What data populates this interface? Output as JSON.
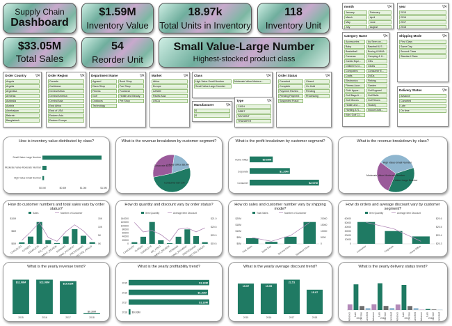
{
  "header": {
    "line1": "Supply Chain",
    "line2": "Dashboard"
  },
  "kpis": [
    {
      "id": "inv-value",
      "value": "$1.59M",
      "label": "Inventory Value"
    },
    {
      "id": "units",
      "value": "18.97k",
      "label": "Total Units in Inventory"
    },
    {
      "id": "inv-unit",
      "value": "118",
      "label": "Inventory Unit"
    },
    {
      "id": "sales",
      "value": "$33.05M",
      "label": "Total Sales"
    },
    {
      "id": "reorder",
      "value": "54",
      "label": "Reorder Unit"
    },
    {
      "id": "class",
      "value": "Small Value-Large Number",
      "label": "Highest-stocked product class"
    }
  ],
  "slicers": {
    "order_country": {
      "title": "Order Country",
      "items": [
        "Angola",
        "Argelia",
        "Argentina",
        "Armenia",
        "Australia",
        "Austria",
        "Azerbaiyan",
        "Bahrein",
        "Bangladesh"
      ]
    },
    "order_region": {
      "title": "Order Region",
      "items": [
        "Canada",
        "Caribbean",
        "Central Africa",
        "Central America",
        "Central Asia",
        "East Africa",
        "East of USA",
        "Eastern Asia",
        "Eastern Europe"
      ]
    },
    "department": {
      "title": "Department Name",
      "items": [
        "Apparel",
        "Book Shop",
        "Discs Shop",
        "Fan Shop",
        "Fitness",
        "Footwear",
        "Golf",
        "Health and Beauty",
        "Outdoors",
        "Pet Shop",
        "Technology"
      ]
    },
    "market": {
      "title": "Market",
      "items": [
        "Africa",
        "Europe",
        "LATAM",
        "Pacific Asia",
        "USCA"
      ]
    },
    "class": {
      "title": "Class",
      "items": [
        "High Value-Small Number",
        "Moderate Value-Modera...",
        "Small Value-Large Number"
      ]
    },
    "manufacturer": {
      "title": "Manufacturer",
      "items": [
        "$",
        "$"
      ]
    },
    "type": {
      "title": "Type",
      "items": [
        "CASH",
        "DEBIT",
        "PAYMENT",
        "TRANSFER"
      ]
    },
    "order_status": {
      "title": "Order Status",
      "items": [
        "Canceled",
        "Closed",
        "Complete",
        "On Hold",
        "Payment Review",
        "Pending",
        "Pending Payment",
        "Processing",
        "Suspected Fraud"
      ]
    },
    "category": {
      "title": "Category Name",
      "items": [
        "Accessories",
        "As Seen on...",
        "Baby",
        "Baseball & S...",
        "Basketball",
        "Boxing & MMA",
        "Cameras",
        "Camping & H...",
        "Cardio Equi...",
        "CDs",
        "Children's Cl...",
        "Cleats",
        "Computers",
        "Consumer E...",
        "Crafts",
        "DVDs",
        "Electronics",
        "Fishing",
        "Fitness Acce...",
        "Garden",
        "Girls' Appar...",
        "Golf Apparel",
        "Golf Bags & ...",
        "Golf Balls",
        "Golf Gloves",
        "Golf Shoes",
        "Health and ...",
        "Hockey",
        "Hunting & S...",
        "Indoor/Outd...",
        "Kids' Golf Cl..."
      ]
    },
    "month": {
      "title": "month",
      "items": [
        "January",
        "February",
        "March",
        "April",
        "May",
        "June",
        "July",
        "August"
      ]
    },
    "year": {
      "title": "year",
      "items": [
        "2015",
        "2016",
        "2017",
        "2018"
      ]
    },
    "shipping": {
      "title": "Shipping Mode",
      "items": [
        "First Class",
        "Same Day",
        "Second Class",
        "Standard Class"
      ]
    },
    "delivery": {
      "title": "Delivery Status",
      "items": [
        "Advance",
        "Canceled",
        "Late",
        "On time"
      ]
    }
  },
  "chart_data": [
    {
      "id": "c1",
      "type": "bar",
      "title": "How is inventory value distributed by class?",
      "categories": [
        "Small Value-Large Number",
        "Moderate Value-Moderate Number",
        "High Value-Small Number"
      ],
      "values": [
        1.45,
        0.1,
        0.04
      ],
      "xticks": [
        "$0.0M",
        "$0.5M",
        "$1.0M",
        "$1.5M"
      ],
      "xlim": [
        0,
        1.5
      ]
    },
    {
      "id": "c2",
      "type": "pie",
      "title": "What is the revenue breakdown by customer segment?",
      "labels": [
        "Consumer",
        "Corporate",
        "Home Office"
      ],
      "values": [
        17.1,
        10.0,
        5.9
      ],
      "slice_labels": [
        "Consumer $17.1M",
        "Corporate $10.0M",
        "Home Office $5.9M"
      ],
      "colors": [
        "#1f7a63",
        "#9a5a9a",
        "#8fb6cf"
      ]
    },
    {
      "id": "c3",
      "type": "bar",
      "title": "What is the profit breakdown by customer segment?",
      "categories": [
        "Home Office",
        "Corporate",
        "Consumer"
      ],
      "values": [
        0.69,
        1.2,
        2.07
      ],
      "data_labels": [
        "$0.69M",
        "$1.20M",
        "$2.07M"
      ]
    },
    {
      "id": "c4",
      "type": "pie",
      "title": "What is the revenue breakdown by class?",
      "labels": [
        "Small Value-Large Number",
        "Moderate Value-Moderate Number",
        "High Value-Small Number"
      ],
      "values": [
        12.0,
        9.5,
        11.5
      ],
      "slice_labels": [
        "Small Value-Large Number",
        "Moderate Value-Moderate Number",
        "High Value-Small Number"
      ],
      "colors": [
        "#1f7a63",
        "#9a5a9a",
        "#8fb6cf"
      ]
    },
    {
      "id": "c5",
      "type": "bar-line",
      "title": "How do customer numbers and total sales vary by order status?",
      "legend": [
        "Sales",
        "Number of Customer"
      ],
      "categories": [
        "CANCELED",
        "CLOSED",
        "COMPLETE",
        "ON_HOLD",
        "PAYMENT_REVIEW",
        "PENDING",
        "PENDING_PAYMENT",
        "PROCESSING",
        "SUSPECTED_FRAUD"
      ],
      "bars": [
        0.7,
        3.6,
        10.9,
        1.8,
        0.4,
        3.7,
        7.3,
        4.0,
        0.8
      ],
      "line": [
        1300,
        6800,
        13000,
        3200,
        700,
        7000,
        11500,
        7500,
        1600
      ],
      "yticks_left": [
        "$0M",
        "$5M",
        "$10M"
      ],
      "yticks_right": [
        "0K",
        "5K",
        "10K",
        "15K"
      ]
    },
    {
      "id": "c6",
      "type": "bar-line",
      "title": "How do quantity and discount vary by order status?",
      "legend": [
        "Item Quantity",
        "Average Item Discount"
      ],
      "categories": [
        "CANCELED",
        "CLOSED",
        "COMPLETE",
        "ON_HOLD",
        "PAYMENT_REVIEW",
        "PENDING",
        "PENDING_PAYMENT",
        "PROCESSING",
        "SUSPECTED_FRAUD"
      ],
      "bars": [
        5000,
        22000,
        68000,
        11000,
        2000,
        22000,
        45000,
        24000,
        5000
      ],
      "line": [
        21.0,
        20.3,
        20.4,
        20.1,
        19.6,
        20.5,
        20.6,
        20.3,
        20.6
      ],
      "yticks_left": [
        "0",
        "20000",
        "40000",
        "60000",
        "80000",
        "100000",
        "120000",
        "140000"
      ],
      "yticks_right": [
        "$19.5",
        "$20.0",
        "$20.5",
        "$21.0"
      ]
    },
    {
      "id": "c7",
      "type": "bar-line",
      "title": "How do sales and customer number vary by shipping mode?",
      "legend": [
        "Total Sales",
        "Number of Customer"
      ],
      "categories": [
        "First Class",
        "Same Day",
        "Second Class",
        "Standard Class"
      ],
      "bars": [
        5.1,
        1.8,
        6.4,
        19.8
      ],
      "line": [
        4500,
        1600,
        6000,
        16000
      ],
      "yticks_left": [
        "$0M",
        "$5M",
        "$10M",
        "$15M",
        "$20M"
      ],
      "yticks_right": [
        "0",
        "5000",
        "10000",
        "15000",
        "20000"
      ]
    },
    {
      "id": "c8",
      "type": "bar-line",
      "title": "How do orders and average discount vary by customer segment?",
      "legend": [
        "Item Quantity",
        "Average Item Discount"
      ],
      "categories": [
        "Consumer",
        "Corporate",
        "Home Office"
      ],
      "bars": [
        65000,
        38000,
        22000
      ],
      "line": [
        20.6,
        20.5,
        20.3
      ],
      "yticks_left": [
        "0",
        "10000",
        "20000",
        "30000",
        "40000",
        "50000",
        "60000"
      ],
      "yticks_right": [
        "$20.3",
        "$20.4",
        "$20.5",
        "$20.6"
      ]
    },
    {
      "id": "c9",
      "type": "bar",
      "title": "What is the yearly revenue trend?",
      "categories": [
        "2015",
        "2016",
        "2017",
        "2018"
      ],
      "values": [
        11.08,
        11.08,
        10.61,
        0.3
      ],
      "data_labels": [
        "$11.08M",
        "$11.08M",
        "$10.61M",
        "$0.30M"
      ]
    },
    {
      "id": "c10",
      "type": "bar",
      "title": "What is the yearly profitability trend?",
      "categories": [
        "2015",
        "2016",
        "2017",
        "2018"
      ],
      "values": [
        1.33,
        1.31,
        1.33,
        0.03
      ],
      "data_labels": [
        "$1.33M",
        "$1.31M",
        "$1.33M",
        "$0.03M"
      ]
    },
    {
      "id": "c11",
      "type": "bar",
      "title": "What is the yearly average discount trend?",
      "categories": [
        "2015",
        "2016",
        "2017",
        "2018"
      ],
      "values": [
        19.97,
        19.95,
        22.51,
        15.97
      ],
      "data_labels": [
        "19.97",
        "19.95",
        "22.51",
        "15.97"
      ]
    },
    {
      "id": "c12",
      "type": "bar",
      "title": "What is the yearly delivery status trend?",
      "years": [
        "2015",
        "2016",
        "2017",
        "2018"
      ],
      "categories": [
        "Advance",
        "Late",
        "On time",
        "Canceled"
      ],
      "series": [
        {
          "year": "2015",
          "values": [
            5200,
            24000,
            3700,
            1700
          ]
        },
        {
          "year": "2016",
          "values": [
            5300,
            25000,
            3800,
            1800
          ]
        },
        {
          "year": "2017",
          "values": [
            5100,
            23500,
            3700,
            1700
          ]
        },
        {
          "year": "2018",
          "values": [
            300,
            900,
            500,
            200
          ]
        }
      ],
      "ylim": [
        0,
        30000
      ]
    }
  ]
}
